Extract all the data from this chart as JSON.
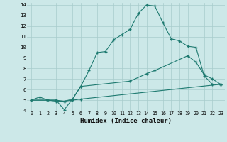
{
  "xlabel": "Humidex (Indice chaleur)",
  "xlim": [
    -0.5,
    23.5
  ],
  "ylim": [
    4,
    14.2
  ],
  "xtick_vals": [
    0,
    1,
    2,
    3,
    4,
    5,
    6,
    7,
    8,
    9,
    10,
    11,
    12,
    13,
    14,
    15,
    16,
    17,
    18,
    19,
    20,
    21,
    22,
    23
  ],
  "ytick_vals": [
    4,
    5,
    6,
    7,
    8,
    9,
    10,
    11,
    12,
    13,
    14
  ],
  "bg_color": "#cce8e8",
  "grid_color": "#a8cccc",
  "line_color": "#1e7a70",
  "series": [
    {
      "x": [
        0,
        1,
        2,
        3,
        4,
        5,
        6,
        7,
        8,
        9,
        10,
        11,
        12,
        13,
        14,
        15,
        16,
        17,
        18,
        19,
        20,
        21,
        22,
        23
      ],
      "y": [
        5.0,
        5.3,
        5.0,
        5.0,
        4.1,
        5.1,
        6.3,
        7.8,
        9.5,
        9.6,
        10.7,
        11.2,
        11.7,
        13.2,
        14.0,
        13.9,
        12.3,
        10.8,
        10.6,
        10.1,
        10.0,
        7.3,
        6.5,
        6.5
      ]
    },
    {
      "x": [
        0,
        2,
        3,
        4,
        5,
        6,
        12,
        14,
        15,
        19,
        20,
        21,
        22,
        23
      ],
      "y": [
        5.0,
        5.0,
        5.0,
        4.9,
        5.1,
        6.3,
        6.8,
        7.5,
        7.8,
        9.2,
        8.6,
        7.4,
        7.0,
        6.5
      ]
    },
    {
      "x": [
        0,
        2,
        3,
        4,
        5,
        6,
        23
      ],
      "y": [
        5.0,
        5.0,
        4.9,
        4.9,
        5.0,
        5.1,
        6.5
      ]
    }
  ]
}
